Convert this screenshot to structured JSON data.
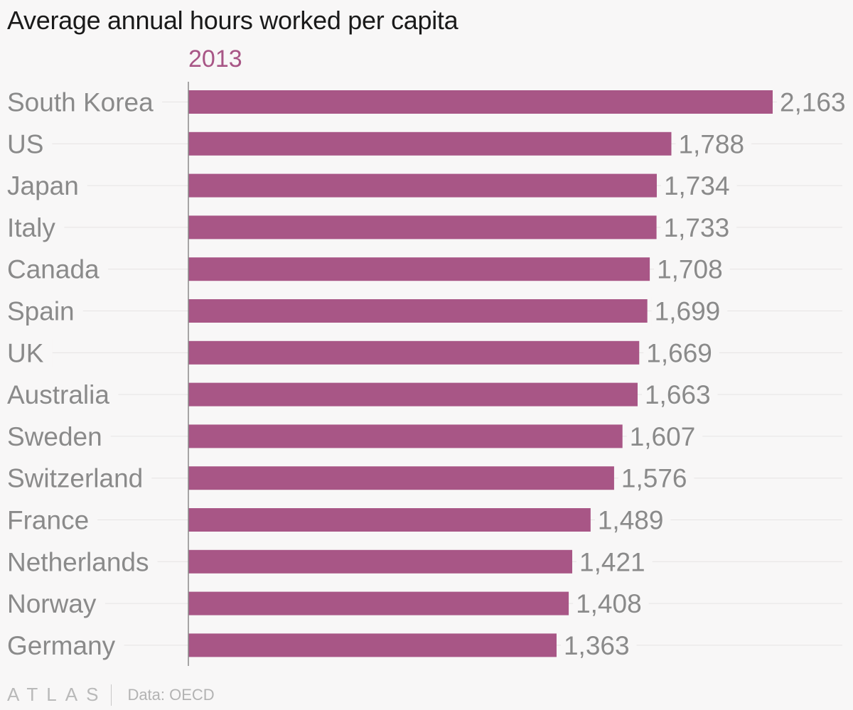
{
  "chart_data": {
    "type": "bar",
    "orientation": "horizontal",
    "title": "Average annual hours worked per capita",
    "series": [
      {
        "name": "2013",
        "color": "#a85686",
        "values": [
          2163,
          1788,
          1734,
          1733,
          1708,
          1699,
          1669,
          1663,
          1607,
          1576,
          1489,
          1421,
          1408,
          1363
        ]
      }
    ],
    "categories": [
      "South Korea",
      "US",
      "Japan",
      "Italy",
      "Canada",
      "Spain",
      "UK",
      "Australia",
      "Sweden",
      "Switzerland",
      "France",
      "Netherlands",
      "Norway",
      "Germany"
    ],
    "value_labels": [
      "2,163",
      "1,788",
      "1,734",
      "1,733",
      "1,708",
      "1,699",
      "1,669",
      "1,663",
      "1,607",
      "1,576",
      "1,489",
      "1,421",
      "1,408",
      "1,363"
    ],
    "xlim": [
      0,
      2163
    ],
    "xlabel": "",
    "ylabel": "",
    "grid": true
  },
  "footer": {
    "brand": "ATLAS",
    "source": "Data: OECD"
  }
}
